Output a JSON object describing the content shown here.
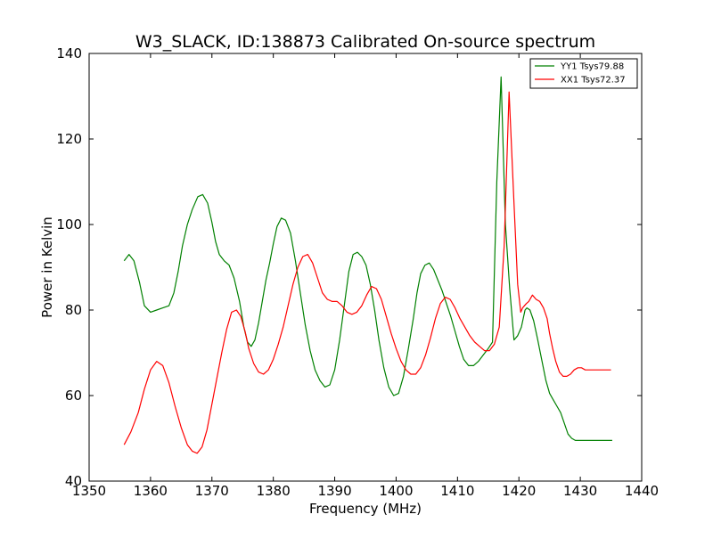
{
  "chart_data": {
    "type": "line",
    "title": "W3_SLACK, ID:138873 Calibrated On-source spectrum",
    "xlabel": "Frequency (MHz)",
    "ylabel": "Power in Kelvin",
    "xlim": [
      1350,
      1440
    ],
    "ylim": [
      40,
      140
    ],
    "xticks": [
      "1350",
      "1360",
      "1370",
      "1380",
      "1390",
      "1400",
      "1410",
      "1420",
      "1430",
      "1440"
    ],
    "yticks": [
      "40",
      "60",
      "80",
      "100",
      "120",
      "140"
    ],
    "grid": false,
    "legend_position": "top-right",
    "series": [
      {
        "name": "YY1 Tsys79.88",
        "color": "#008000",
        "x": [
          1355.7,
          1356.5,
          1357.3,
          1358.2,
          1359.0,
          1360.0,
          1361.0,
          1362.0,
          1363.0,
          1363.8,
          1364.5,
          1365.2,
          1366.0,
          1366.8,
          1367.7,
          1368.5,
          1369.3,
          1370.0,
          1370.6,
          1371.2,
          1372.0,
          1372.8,
          1373.6,
          1374.5,
          1375.2,
          1375.8,
          1376.4,
          1377.0,
          1377.6,
          1378.2,
          1378.8,
          1379.4,
          1380.0,
          1380.6,
          1381.3,
          1382.0,
          1382.8,
          1383.6,
          1384.4,
          1385.2,
          1386.0,
          1386.8,
          1387.6,
          1388.4,
          1389.2,
          1390.0,
          1390.8,
          1391.6,
          1392.3,
          1393.0,
          1393.7,
          1394.4,
          1395.1,
          1395.8,
          1396.5,
          1397.2,
          1398.0,
          1398.8,
          1399.6,
          1400.4,
          1401.2,
          1402.0,
          1402.8,
          1403.4,
          1404.0,
          1404.7,
          1405.4,
          1406.1,
          1406.8,
          1407.5,
          1408.2,
          1408.9,
          1409.6,
          1410.3,
          1411.0,
          1411.8,
          1412.6,
          1413.4,
          1414.2,
          1415.0,
          1415.7,
          1416.4,
          1417.1,
          1417.8,
          1418.5,
          1419.2,
          1419.8,
          1420.4,
          1420.7,
          1421.0,
          1421.3,
          1421.8,
          1422.4,
          1423.0,
          1423.7,
          1424.4,
          1425.0,
          1425.6,
          1426.2,
          1426.8,
          1427.4,
          1428.0,
          1428.6,
          1429.2,
          1429.8,
          1430.5,
          1431.2,
          1432.0,
          1432.8,
          1433.6,
          1434.4,
          1435.2
        ],
        "y": [
          91.5,
          93.0,
          91.5,
          86.5,
          81.0,
          79.5,
          80.0,
          80.5,
          81.0,
          84.0,
          89.0,
          95.0,
          100.0,
          103.5,
          106.5,
          107.0,
          105.0,
          100.5,
          96.0,
          93.0,
          91.5,
          90.5,
          87.5,
          82.0,
          76.0,
          72.5,
          71.5,
          73.0,
          77.0,
          82.0,
          87.0,
          91.0,
          95.5,
          99.5,
          101.5,
          101.0,
          98.0,
          91.5,
          84.0,
          76.5,
          70.5,
          66.0,
          63.5,
          62.0,
          62.5,
          66.0,
          73.0,
          81.5,
          89.0,
          93.0,
          93.5,
          92.5,
          90.5,
          86.0,
          80.0,
          73.0,
          66.5,
          62.0,
          60.0,
          60.5,
          64.5,
          71.0,
          78.0,
          84.0,
          88.5,
          90.5,
          91.0,
          89.5,
          87.0,
          84.5,
          81.5,
          78.5,
          75.0,
          71.5,
          68.5,
          67.0,
          67.0,
          68.0,
          69.5,
          71.0,
          72.5,
          110.0,
          134.5,
          100.0,
          85.0,
          73.0,
          74.0,
          76.0,
          78.0,
          80.0,
          80.5,
          80.0,
          77.5,
          73.5,
          68.5,
          63.5,
          60.5,
          59.0,
          57.5,
          56.0,
          53.5,
          51.0,
          50.0,
          49.5,
          49.5,
          49.5,
          49.5,
          49.5,
          49.5,
          49.5,
          49.5,
          49.5
        ]
      },
      {
        "name": "XX1 Tsys72.37",
        "color": "#ff0000",
        "x": [
          1355.7,
          1356.8,
          1358.0,
          1359.0,
          1360.0,
          1361.0,
          1362.0,
          1363.0,
          1364.0,
          1365.0,
          1366.0,
          1366.8,
          1367.6,
          1368.4,
          1369.2,
          1370.0,
          1370.8,
          1371.6,
          1372.4,
          1373.2,
          1374.0,
          1374.7,
          1375.4,
          1376.0,
          1376.8,
          1377.6,
          1378.4,
          1379.2,
          1380.0,
          1380.8,
          1381.6,
          1382.4,
          1383.2,
          1384.0,
          1384.8,
          1385.6,
          1386.4,
          1387.2,
          1388.0,
          1388.8,
          1389.6,
          1390.4,
          1391.2,
          1392.0,
          1392.8,
          1393.6,
          1394.4,
          1395.2,
          1396.0,
          1396.8,
          1397.6,
          1398.4,
          1399.2,
          1400.0,
          1400.8,
          1401.6,
          1402.4,
          1403.2,
          1404.0,
          1404.8,
          1405.6,
          1406.4,
          1407.2,
          1408.0,
          1408.8,
          1409.6,
          1410.4,
          1411.2,
          1412.0,
          1412.8,
          1413.6,
          1414.4,
          1415.2,
          1416.0,
          1416.8,
          1417.6,
          1418.4,
          1419.2,
          1419.8,
          1420.3,
          1420.6,
          1420.9,
          1421.2,
          1421.6,
          1422.2,
          1422.8,
          1423.4,
          1424.0,
          1424.6,
          1425.0,
          1425.5,
          1426.0,
          1426.6,
          1427.2,
          1427.8,
          1428.4,
          1429.0,
          1429.6,
          1430.2,
          1430.8,
          1431.4,
          1432.0,
          1432.6,
          1433.2,
          1433.8,
          1434.4,
          1435.0
        ],
        "y": [
          48.5,
          51.5,
          56.0,
          61.5,
          66.0,
          68.0,
          67.0,
          63.0,
          57.5,
          52.5,
          48.5,
          47.0,
          46.5,
          48.0,
          52.0,
          58.0,
          64.0,
          70.0,
          75.5,
          79.5,
          80.0,
          78.5,
          75.0,
          71.0,
          67.5,
          65.5,
          65.0,
          66.0,
          68.5,
          72.0,
          76.0,
          81.0,
          86.0,
          90.0,
          92.5,
          93.0,
          91.0,
          87.5,
          84.0,
          82.5,
          82.0,
          82.0,
          81.0,
          79.5,
          79.0,
          79.5,
          81.0,
          83.5,
          85.5,
          85.0,
          82.5,
          78.5,
          74.5,
          71.0,
          68.0,
          66.0,
          65.0,
          65.0,
          66.5,
          69.5,
          73.5,
          78.0,
          81.5,
          83.0,
          82.5,
          80.5,
          78.0,
          76.0,
          74.0,
          72.5,
          71.5,
          70.5,
          70.5,
          72.0,
          76.0,
          95.0,
          131.0,
          105.0,
          86.0,
          79.5,
          80.5,
          81.0,
          81.5,
          82.0,
          83.5,
          82.5,
          82.0,
          80.5,
          78.0,
          74.5,
          71.0,
          68.0,
          65.5,
          64.5,
          64.5,
          65.0,
          66.0,
          66.5,
          66.5,
          66.0,
          66.0,
          66.0,
          66.0,
          66.0,
          66.0,
          66.0,
          66.0
        ]
      }
    ]
  }
}
